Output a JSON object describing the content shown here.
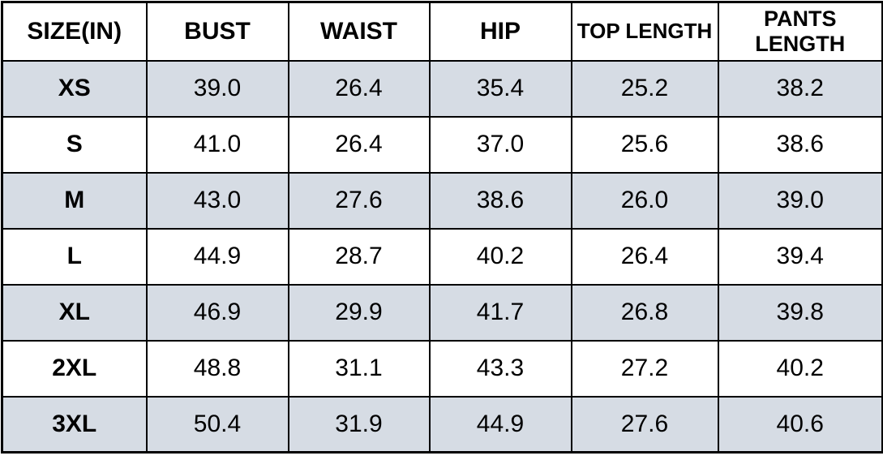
{
  "colors": {
    "row_stripe": "#d6dce4",
    "row_plain": "#ffffff",
    "border": "#000000",
    "text": "#000000",
    "background": "#ffffff"
  },
  "chart_data": {
    "type": "table",
    "columns": [
      "SIZE(IN)",
      "BUST",
      "WAIST",
      "HIP",
      "TOP LENGTH",
      "PANTS LENGTH"
    ],
    "rows": [
      [
        "XS",
        "39.0",
        "26.4",
        "35.4",
        "25.2",
        "38.2"
      ],
      [
        "S",
        "41.0",
        "26.4",
        "37.0",
        "25.6",
        "38.6"
      ],
      [
        "M",
        "43.0",
        "27.6",
        "38.6",
        "26.0",
        "39.0"
      ],
      [
        "L",
        "44.9",
        "28.7",
        "40.2",
        "26.4",
        "39.4"
      ],
      [
        "XL",
        "46.9",
        "29.9",
        "41.7",
        "26.8",
        "39.8"
      ],
      [
        "2XL",
        "48.8",
        "31.1",
        "43.3",
        "27.2",
        "40.2"
      ],
      [
        "3XL",
        "50.4",
        "31.9",
        "44.9",
        "27.6",
        "40.6"
      ]
    ],
    "stripe_rows": [
      0,
      2,
      4,
      6
    ],
    "layout": {
      "header_background": "#ffffff",
      "stripe_background": "#d6dce4",
      "grid": true
    }
  }
}
